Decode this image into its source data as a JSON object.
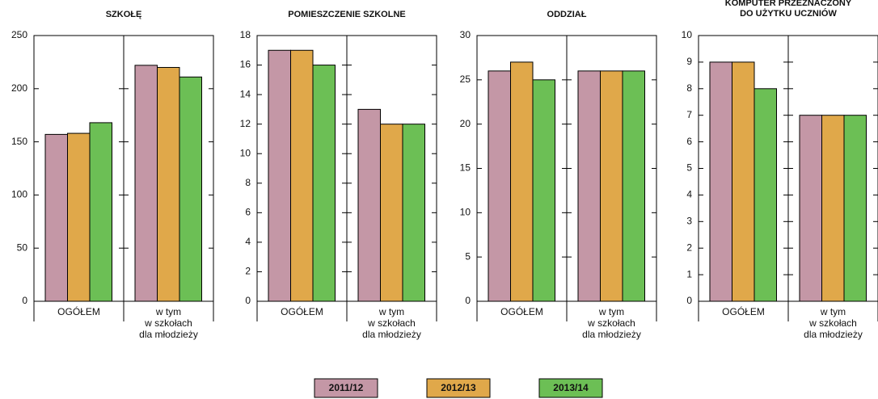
{
  "chart_data": [
    {
      "type": "bar",
      "title": "SZKOŁĘ",
      "categories": [
        "OGÓŁEM",
        "w tym\nw szkołach\ndla młodzieży"
      ],
      "series": [
        {
          "values": [
            157,
            222
          ]
        },
        {
          "values": [
            158,
            220
          ]
        },
        {
          "values": [
            168,
            211
          ]
        }
      ],
      "ylim": [
        0,
        250
      ],
      "yticks": [
        0,
        50,
        100,
        150,
        200,
        250
      ]
    },
    {
      "type": "bar",
      "title": "POMIESZCZENIE SZKOLNE",
      "categories": [
        "OGÓŁEM",
        "w tym\nw szkołach\ndla młodzieży"
      ],
      "series": [
        {
          "values": [
            17,
            13
          ]
        },
        {
          "values": [
            17,
            12
          ]
        },
        {
          "values": [
            16,
            12
          ]
        }
      ],
      "ylim": [
        0,
        18
      ],
      "yticks": [
        0,
        2,
        4,
        6,
        8,
        10,
        12,
        14,
        16,
        18
      ]
    },
    {
      "type": "bar",
      "title": "ODDZIAŁ",
      "categories": [
        "OGÓŁEM",
        "w tym\nw szkołach\ndla młodzieży"
      ],
      "series": [
        {
          "values": [
            26,
            26
          ]
        },
        {
          "values": [
            27,
            26
          ]
        },
        {
          "values": [
            25,
            26
          ]
        }
      ],
      "ylim": [
        0,
        30
      ],
      "yticks": [
        0,
        5,
        10,
        15,
        20,
        25,
        30
      ]
    },
    {
      "type": "bar",
      "title": "KOMPUTER PRZEZNACZONY\nDO UŻYTKU UCZNIÓW",
      "categories": [
        "OGÓŁEM",
        "w tym\nw szkołach\ndla młodzieży"
      ],
      "series": [
        {
          "values": [
            9,
            7
          ]
        },
        {
          "values": [
            9,
            7
          ]
        },
        {
          "values": [
            8,
            7
          ]
        }
      ],
      "ylim": [
        0,
        10
      ],
      "yticks": [
        0,
        1,
        2,
        3,
        4,
        5,
        6,
        7,
        8,
        9,
        10
      ]
    }
  ],
  "legend": [
    {
      "name": "2011/12",
      "color": "#c497a6"
    },
    {
      "name": "2012/13",
      "color": "#e0a84a"
    },
    {
      "name": "2013/14",
      "color": "#6cbf55"
    }
  ]
}
